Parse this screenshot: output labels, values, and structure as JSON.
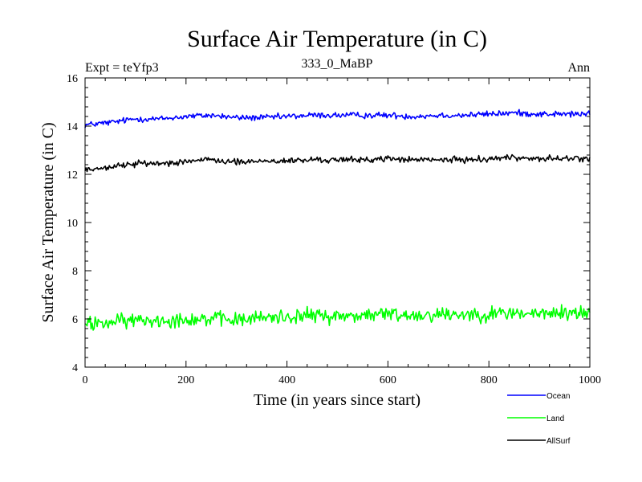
{
  "chart_data": {
    "type": "line",
    "title": "Surface Air Temperature (in C)",
    "subtitle_left": "Expt = teYfp3",
    "subtitle_center": "333_0_MaBP",
    "subtitle_right": "Ann",
    "xlabel": "Time (in years since start)",
    "ylabel": "Surface Air Temperature (in C)",
    "xlim": [
      0,
      1000
    ],
    "ylim": [
      4,
      16
    ],
    "x_ticks": [
      0,
      200,
      400,
      600,
      800,
      1000
    ],
    "y_ticks": [
      4,
      6,
      8,
      10,
      12,
      14,
      16
    ],
    "x_tick_labels": [
      "0",
      "200",
      "400",
      "600",
      "800",
      "1000"
    ],
    "y_tick_labels": [
      "4",
      "6",
      "8",
      "10",
      "12",
      "14",
      "16"
    ],
    "legend_position": "bottom-right, outside plot",
    "series": [
      {
        "name": "Ocean",
        "color": "#0000ff",
        "x": [
          0,
          50,
          100,
          150,
          200,
          250,
          300,
          350,
          400,
          450,
          500,
          550,
          600,
          650,
          700,
          750,
          800,
          850,
          900,
          950,
          1000
        ],
        "values": [
          14.05,
          14.15,
          14.3,
          14.3,
          14.4,
          14.45,
          14.35,
          14.35,
          14.4,
          14.45,
          14.45,
          14.45,
          14.45,
          14.4,
          14.45,
          14.45,
          14.5,
          14.55,
          14.5,
          14.5,
          14.5
        ],
        "noise": 0.09
      },
      {
        "name": "Land",
        "color": "#00ff00",
        "x": [
          0,
          50,
          100,
          150,
          200,
          250,
          300,
          350,
          400,
          450,
          500,
          550,
          600,
          650,
          700,
          750,
          800,
          850,
          900,
          950,
          1000
        ],
        "values": [
          5.8,
          5.85,
          5.95,
          5.95,
          6.0,
          6.0,
          5.95,
          6.05,
          6.1,
          6.15,
          6.1,
          6.15,
          6.2,
          6.15,
          6.2,
          6.2,
          6.2,
          6.25,
          6.2,
          6.25,
          6.25
        ],
        "noise": 0.22
      },
      {
        "name": "AllSurf",
        "color": "#000000",
        "x": [
          0,
          50,
          100,
          150,
          200,
          250,
          300,
          350,
          400,
          450,
          500,
          550,
          600,
          650,
          700,
          750,
          800,
          850,
          900,
          950,
          1000
        ],
        "values": [
          12.2,
          12.3,
          12.45,
          12.45,
          12.55,
          12.6,
          12.5,
          12.55,
          12.55,
          12.6,
          12.6,
          12.6,
          12.65,
          12.6,
          12.6,
          12.6,
          12.65,
          12.7,
          12.65,
          12.65,
          12.65
        ],
        "noise": 0.09
      }
    ]
  }
}
